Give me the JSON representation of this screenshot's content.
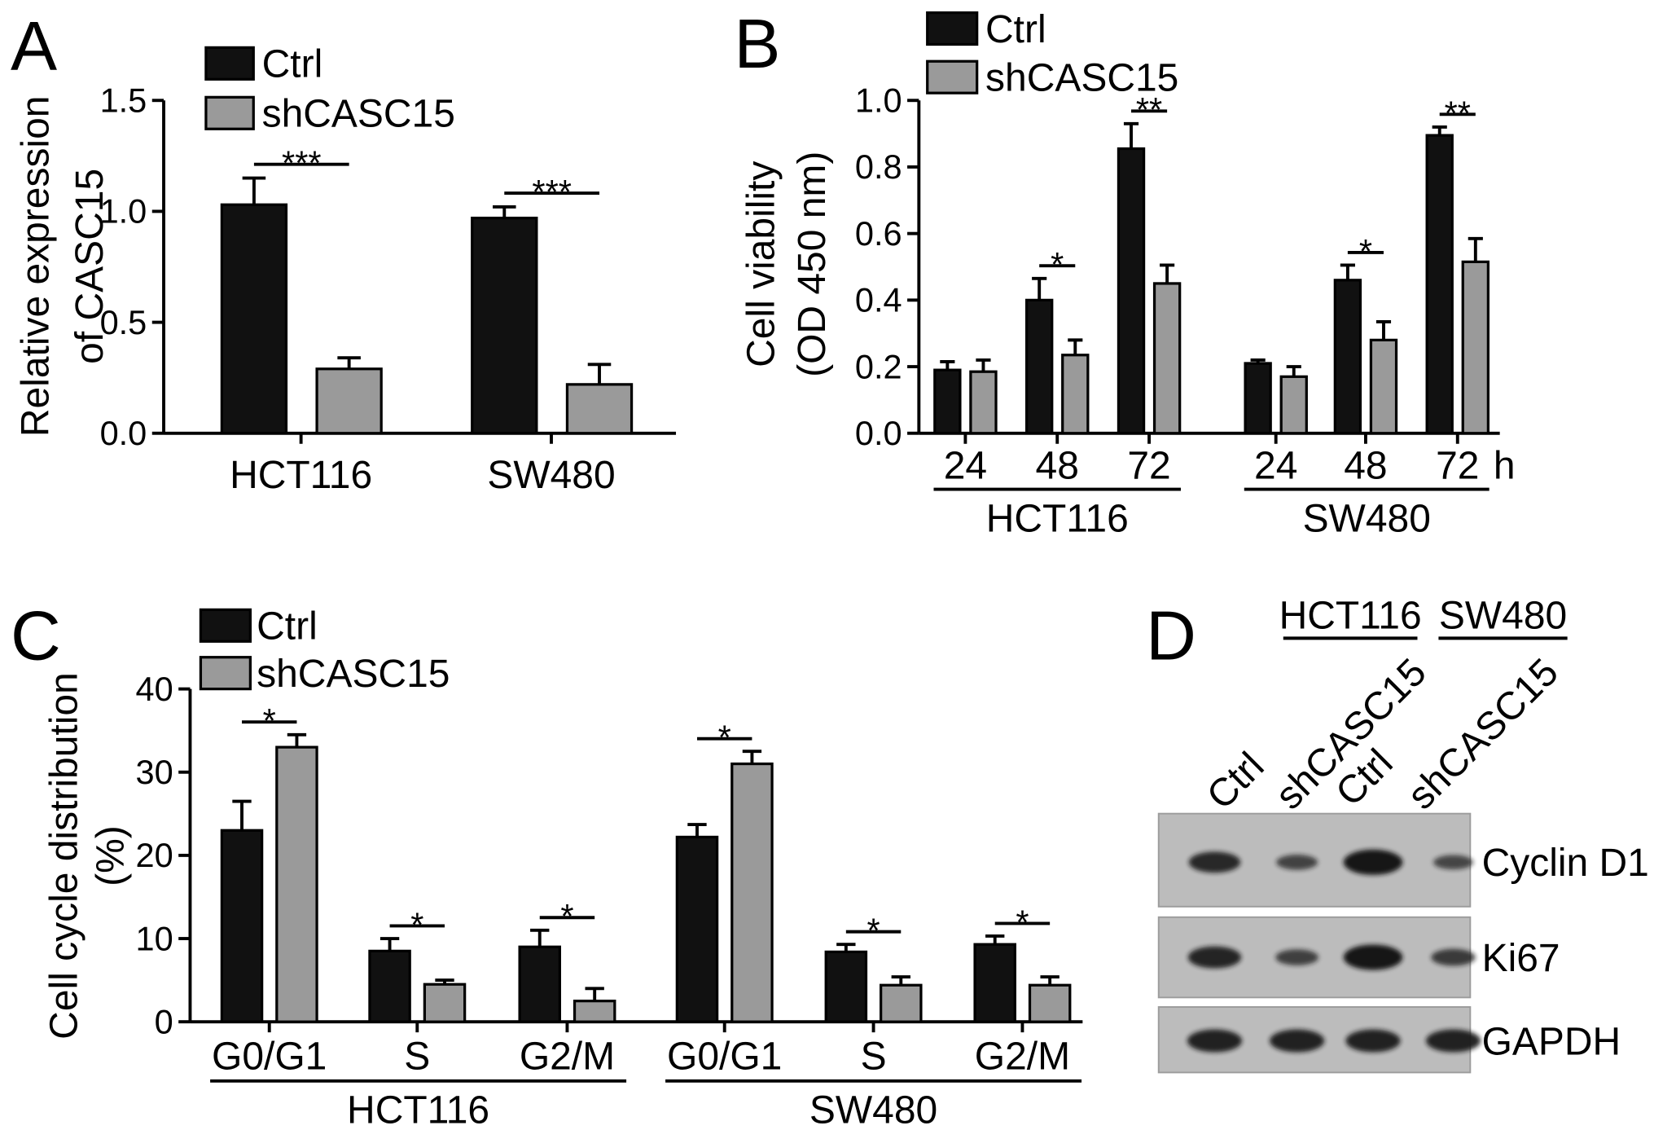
{
  "chart_data": [
    {
      "panel": "A",
      "type": "bar",
      "ylabel": [
        "Relative expression",
        "of CASC15"
      ],
      "ylim": [
        0,
        1.5
      ],
      "yticks": [
        {
          "value": 0,
          "label": "0.0"
        },
        {
          "value": 0.5,
          "label": "0.5"
        },
        {
          "value": 1.0,
          "label": "1.0"
        },
        {
          "value": 1.5,
          "label": "1.5"
        }
      ],
      "categories": [
        "HCT116",
        "SW480"
      ],
      "series": [
        {
          "name": "Ctrl",
          "color": "#111111",
          "values": [
            1.03,
            0.97
          ],
          "error": [
            0.12,
            0.05
          ]
        },
        {
          "name": "shCASC15",
          "color": "#9a9a9a",
          "values": [
            0.29,
            0.22
          ],
          "error": [
            0.05,
            0.09
          ]
        }
      ],
      "significance": [
        "***",
        "***"
      ],
      "legend": "top-left",
      "grid": false
    },
    {
      "panel": "B",
      "type": "bar",
      "ylabel": [
        "Cell viability",
        "(OD 450 nm)"
      ],
      "ylim": [
        0,
        1.0
      ],
      "yticks": [
        {
          "value": 0,
          "label": "0.0"
        },
        {
          "value": 0.2,
          "label": "0.2"
        },
        {
          "value": 0.4,
          "label": "0.4"
        },
        {
          "value": 0.6,
          "label": "0.6"
        },
        {
          "value": 0.8,
          "label": "0.8"
        },
        {
          "value": 1.0,
          "label": "1.0"
        }
      ],
      "x_unit": "h",
      "groups": [
        {
          "label": "HCT116",
          "categories": [
            "24",
            "48",
            "72"
          ]
        },
        {
          "label": "SW480",
          "categories": [
            "24",
            "48",
            "72"
          ]
        }
      ],
      "series": [
        {
          "name": "Ctrl",
          "color": "#111111",
          "values": [
            0.19,
            0.4,
            0.855,
            0.21,
            0.46,
            0.895
          ],
          "error": [
            0.025,
            0.065,
            0.075,
            0.01,
            0.045,
            0.025
          ]
        },
        {
          "name": "shCASC15",
          "color": "#9a9a9a",
          "values": [
            0.185,
            0.235,
            0.45,
            0.17,
            0.28,
            0.515
          ],
          "error": [
            0.035,
            0.045,
            0.055,
            0.03,
            0.055,
            0.07
          ]
        }
      ],
      "significance": [
        null,
        "*",
        "**",
        null,
        "*",
        "**"
      ],
      "legend": "top-left",
      "grid": false
    },
    {
      "panel": "C",
      "type": "bar",
      "ylabel": [
        "Cell cycle distribution",
        "(%)"
      ],
      "ylim": [
        0,
        40
      ],
      "yticks": [
        {
          "value": 0,
          "label": "0"
        },
        {
          "value": 10,
          "label": "10"
        },
        {
          "value": 20,
          "label": "20"
        },
        {
          "value": 30,
          "label": "30"
        },
        {
          "value": 40,
          "label": "40"
        }
      ],
      "groups": [
        {
          "label": "HCT116",
          "categories": [
            "G0/G1",
            "S",
            "G2/M"
          ]
        },
        {
          "label": "SW480",
          "categories": [
            "G0/G1",
            "S",
            "G2/M"
          ]
        }
      ],
      "series": [
        {
          "name": "Ctrl",
          "color": "#111111",
          "values": [
            23,
            8.5,
            9,
            22.2,
            8.4,
            9.3
          ],
          "error": [
            3.5,
            1.5,
            2,
            1.5,
            0.9,
            1
          ]
        },
        {
          "name": "shCASC15",
          "color": "#9a9a9a",
          "values": [
            33,
            4.5,
            2.5,
            31,
            4.4,
            4.4
          ],
          "error": [
            1.5,
            0.5,
            1.5,
            1.5,
            1,
            1
          ]
        }
      ],
      "significance": [
        "*",
        "*",
        "*",
        "*",
        "*",
        "*"
      ],
      "legend": "top-left",
      "grid": false
    }
  ],
  "blot": {
    "panel": "D",
    "groups": [
      {
        "label": "HCT116",
        "lanes": [
          "Ctrl",
          "shCASC15"
        ]
      },
      {
        "label": "SW480",
        "lanes": [
          "Ctrl",
          "shCASC15"
        ]
      }
    ],
    "rows": [
      {
        "label": "Cyclin D1",
        "relative_intensity": [
          0.75,
          0.4,
          1.0,
          0.35
        ]
      },
      {
        "label": "Ki67",
        "relative_intensity": [
          0.8,
          0.45,
          1.0,
          0.5
        ]
      },
      {
        "label": "GAPDH",
        "relative_intensity": [
          0.85,
          0.85,
          0.85,
          0.85
        ]
      }
    ]
  }
}
